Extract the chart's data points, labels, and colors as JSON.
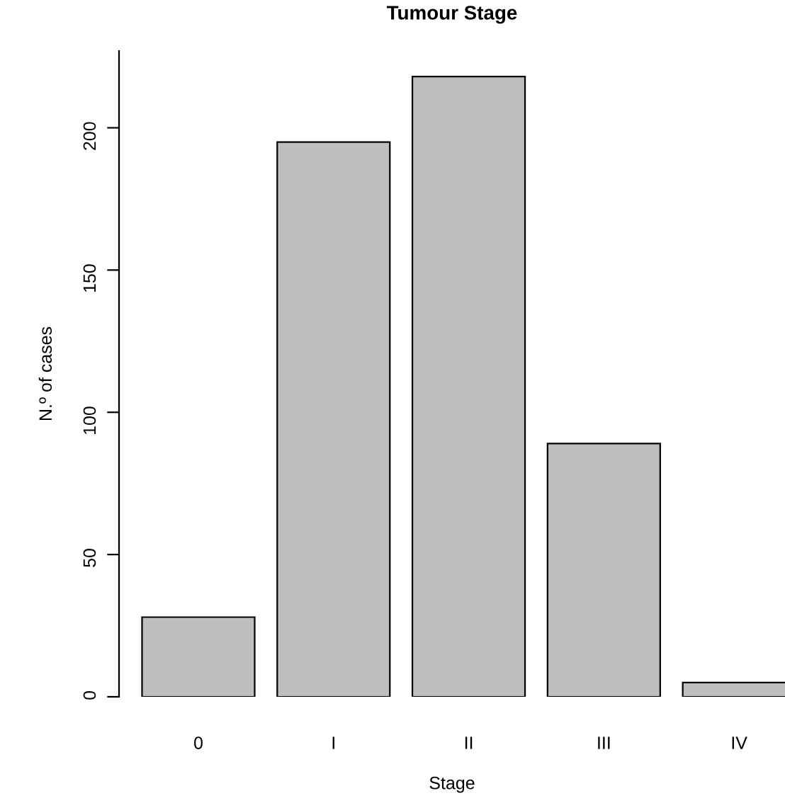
{
  "chart_data": {
    "type": "bar",
    "title": "Tumour Stage",
    "xlabel": "Stage",
    "ylabel": "N.º of cases",
    "categories": [
      "0",
      "I",
      "II",
      "III",
      "IV"
    ],
    "values": [
      28,
      195,
      218,
      89,
      5
    ],
    "color": "#bebebe",
    "ylim": [
      0,
      227
    ],
    "yticks": [
      0,
      50,
      100,
      150,
      200
    ],
    "grid": false,
    "legend": false
  }
}
